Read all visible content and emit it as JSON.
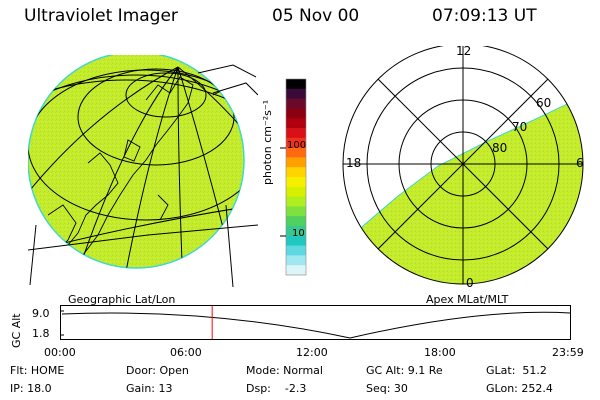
{
  "header": {
    "instrument": "Ultraviolet Imager",
    "date": "05 Nov 00",
    "time": "07:09:13 UT"
  },
  "geo_panel": {
    "label": "Geographic Lat/Lon"
  },
  "apex_panel": {
    "label": "Apex MLat/MLT",
    "mlt_labels": {
      "top": "12",
      "left": "18",
      "right": "6",
      "bottom": "0"
    },
    "lat_labels": [
      "60",
      "70",
      "80"
    ]
  },
  "colorbar": {
    "unit_label": "photon cm⁻²s⁻¹",
    "tick_labels": [
      "100",
      "10"
    ],
    "colors": [
      "#000000",
      "#3a0a3a",
      "#6a0a2a",
      "#8a0010",
      "#b00010",
      "#d81018",
      "#f03018",
      "#ff6a10",
      "#ffa000",
      "#ffd400",
      "#f6f000",
      "#d6f000",
      "#b0ee20",
      "#80e040",
      "#50d060",
      "#38c890",
      "#20c8c0",
      "#60d8e0",
      "#a0e8f0",
      "#ddf4f8"
    ]
  },
  "altitude_plot": {
    "axis_label": "GC Alt",
    "y_ticks": [
      "9.0",
      "1.8"
    ],
    "x_ticks": [
      "00:00",
      "06:00",
      "12:00",
      "18:00",
      "23:59"
    ],
    "marker_time_fraction": 0.297,
    "marker_color": "#ff0000"
  },
  "status": {
    "flt": "Flt: HOME",
    "ip": "IP: 18.0",
    "door": "Door: Open",
    "gain": "Gain: 13",
    "mode": "Mode: Normal",
    "dsp": "Dsp:    -2.3",
    "gcalt": "GC Alt: 9.1 Re",
    "seq": "Seq: 30",
    "glat": "GLat:  51.2",
    "glon": "GLon: 252.4"
  },
  "colors": {
    "image_green": "#c4ec2c",
    "image_speckle": "#a8e02a",
    "limb_cyan": "#40d8c8",
    "grid": "#000000"
  }
}
